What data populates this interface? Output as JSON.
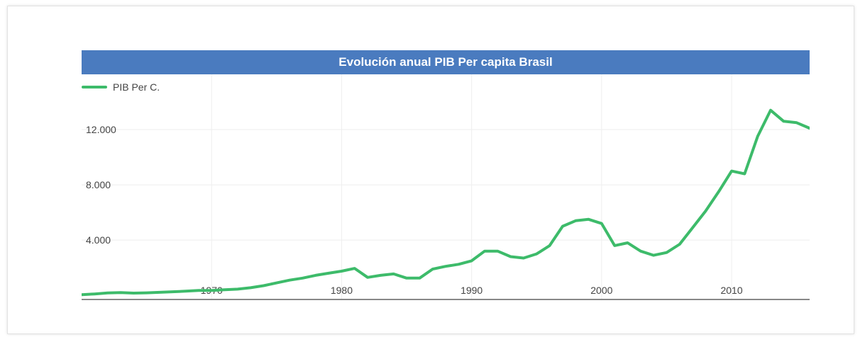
{
  "chart_data": {
    "type": "line",
    "title": "Evolución anual PIB Per capita Brasil",
    "xlabel": "",
    "ylabel": "",
    "xlim": [
      1960,
      2016
    ],
    "ylim": [
      -300,
      16000
    ],
    "x_ticks": [
      1970,
      1980,
      1990,
      2000,
      2010
    ],
    "y_ticks": [
      4000,
      8000,
      12000
    ],
    "y_tick_labels": [
      "4.000",
      "8.000",
      "12.000"
    ],
    "legend_position": "top-left",
    "grid": true,
    "series": [
      {
        "name": "PIB Per C.",
        "color": "#3dbb6a",
        "x": [
          1960,
          1961,
          1962,
          1963,
          1964,
          1965,
          1966,
          1967,
          1968,
          1969,
          1970,
          1971,
          1972,
          1973,
          1974,
          1975,
          1976,
          1977,
          1978,
          1979,
          1980,
          1981,
          1982,
          1983,
          1984,
          1985,
          1986,
          1987,
          1988,
          1989,
          1990,
          1991,
          1992,
          1993,
          1994,
          1995,
          1996,
          1997,
          1998,
          1999,
          2000,
          2001,
          2002,
          2003,
          2004,
          2005,
          2006,
          2007,
          2008,
          2009,
          2010,
          2011,
          2012,
          2013,
          2014,
          2015,
          2016
        ],
        "values": [
          50,
          100,
          170,
          200,
          160,
          180,
          220,
          260,
          300,
          350,
          350,
          400,
          450,
          550,
          700,
          900,
          1100,
          1250,
          1450,
          1600,
          1750,
          1950,
          1300,
          1450,
          1550,
          1250,
          1250,
          1900,
          2100,
          2250,
          2500,
          3200,
          3200,
          2800,
          2700,
          3000,
          3600,
          5000,
          5400,
          5500,
          5200,
          3600,
          3800,
          3200,
          2900,
          3100,
          3700,
          4900,
          6100,
          7500,
          9000,
          8800,
          11500,
          13400,
          12600,
          12500,
          12100
        ]
      }
    ]
  }
}
